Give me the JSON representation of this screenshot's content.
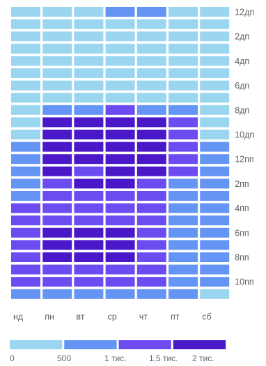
{
  "chart_data": {
    "type": "heatmap",
    "x_categories": [
      "нд",
      "пн",
      "вт",
      "ср",
      "чт",
      "пт",
      "сб"
    ],
    "y_tick_labels": [
      "12дп",
      "2дп",
      "4дп",
      "6дп",
      "8дп",
      "10дп",
      "12пп",
      "2пп",
      "4пп",
      "6пп",
      "8пп",
      "10пп"
    ],
    "hours": [
      "12дп",
      "1дп",
      "2дп",
      "3дп",
      "4дп",
      "5дп",
      "6дп",
      "7дп",
      "8дп",
      "9дп",
      "10дп",
      "11дп",
      "12пп",
      "1пп",
      "2пп",
      "3пп",
      "4пп",
      "5пп",
      "6пп",
      "7пп",
      "8пп",
      "9пп",
      "10пп",
      "11пп"
    ],
    "values": [
      [
        100,
        100,
        100,
        700,
        700,
        100,
        100
      ],
      [
        100,
        100,
        100,
        100,
        100,
        100,
        100
      ],
      [
        100,
        100,
        100,
        100,
        100,
        100,
        100
      ],
      [
        100,
        100,
        100,
        100,
        100,
        100,
        100
      ],
      [
        100,
        100,
        100,
        100,
        100,
        100,
        100
      ],
      [
        100,
        100,
        100,
        100,
        100,
        100,
        100
      ],
      [
        100,
        100,
        100,
        100,
        100,
        100,
        100
      ],
      [
        100,
        100,
        100,
        100,
        100,
        100,
        100
      ],
      [
        100,
        700,
        700,
        1200,
        700,
        700,
        100
      ],
      [
        100,
        1800,
        1800,
        1800,
        1800,
        1200,
        100
      ],
      [
        100,
        1800,
        1800,
        1800,
        1800,
        1200,
        100
      ],
      [
        700,
        1800,
        1800,
        1800,
        1800,
        1200,
        700
      ],
      [
        700,
        1800,
        1800,
        1800,
        1800,
        1200,
        700
      ],
      [
        700,
        1800,
        1200,
        1800,
        1800,
        1200,
        700
      ],
      [
        700,
        1200,
        1800,
        1800,
        1200,
        700,
        700
      ],
      [
        700,
        1200,
        1200,
        1200,
        1200,
        700,
        700
      ],
      [
        1200,
        1200,
        1200,
        1200,
        1200,
        700,
        700
      ],
      [
        1200,
        1200,
        1200,
        1200,
        1200,
        700,
        700
      ],
      [
        1200,
        1800,
        1800,
        1800,
        1200,
        700,
        700
      ],
      [
        1200,
        1800,
        1800,
        1800,
        1200,
        700,
        700
      ],
      [
        1200,
        1800,
        1800,
        1800,
        1200,
        700,
        700
      ],
      [
        1200,
        1200,
        1200,
        1200,
        1200,
        700,
        700
      ],
      [
        1200,
        1200,
        1200,
        1200,
        1200,
        700,
        700
      ],
      [
        700,
        700,
        700,
        700,
        700,
        700,
        100
      ]
    ],
    "color_scale": {
      "bins": [
        {
          "min": 0,
          "max": 500,
          "color": "#9ad6f0"
        },
        {
          "min": 500,
          "max": 1000,
          "color": "#6495f5"
        },
        {
          "min": 1000,
          "max": 1500,
          "color": "#6c4cf0"
        },
        {
          "min": 1500,
          "max": 2000,
          "color": "#4a18c8"
        }
      ],
      "tick_labels": [
        "0",
        "500",
        "1 тис.",
        "1,5 тис.",
        "2 тис."
      ]
    }
  }
}
